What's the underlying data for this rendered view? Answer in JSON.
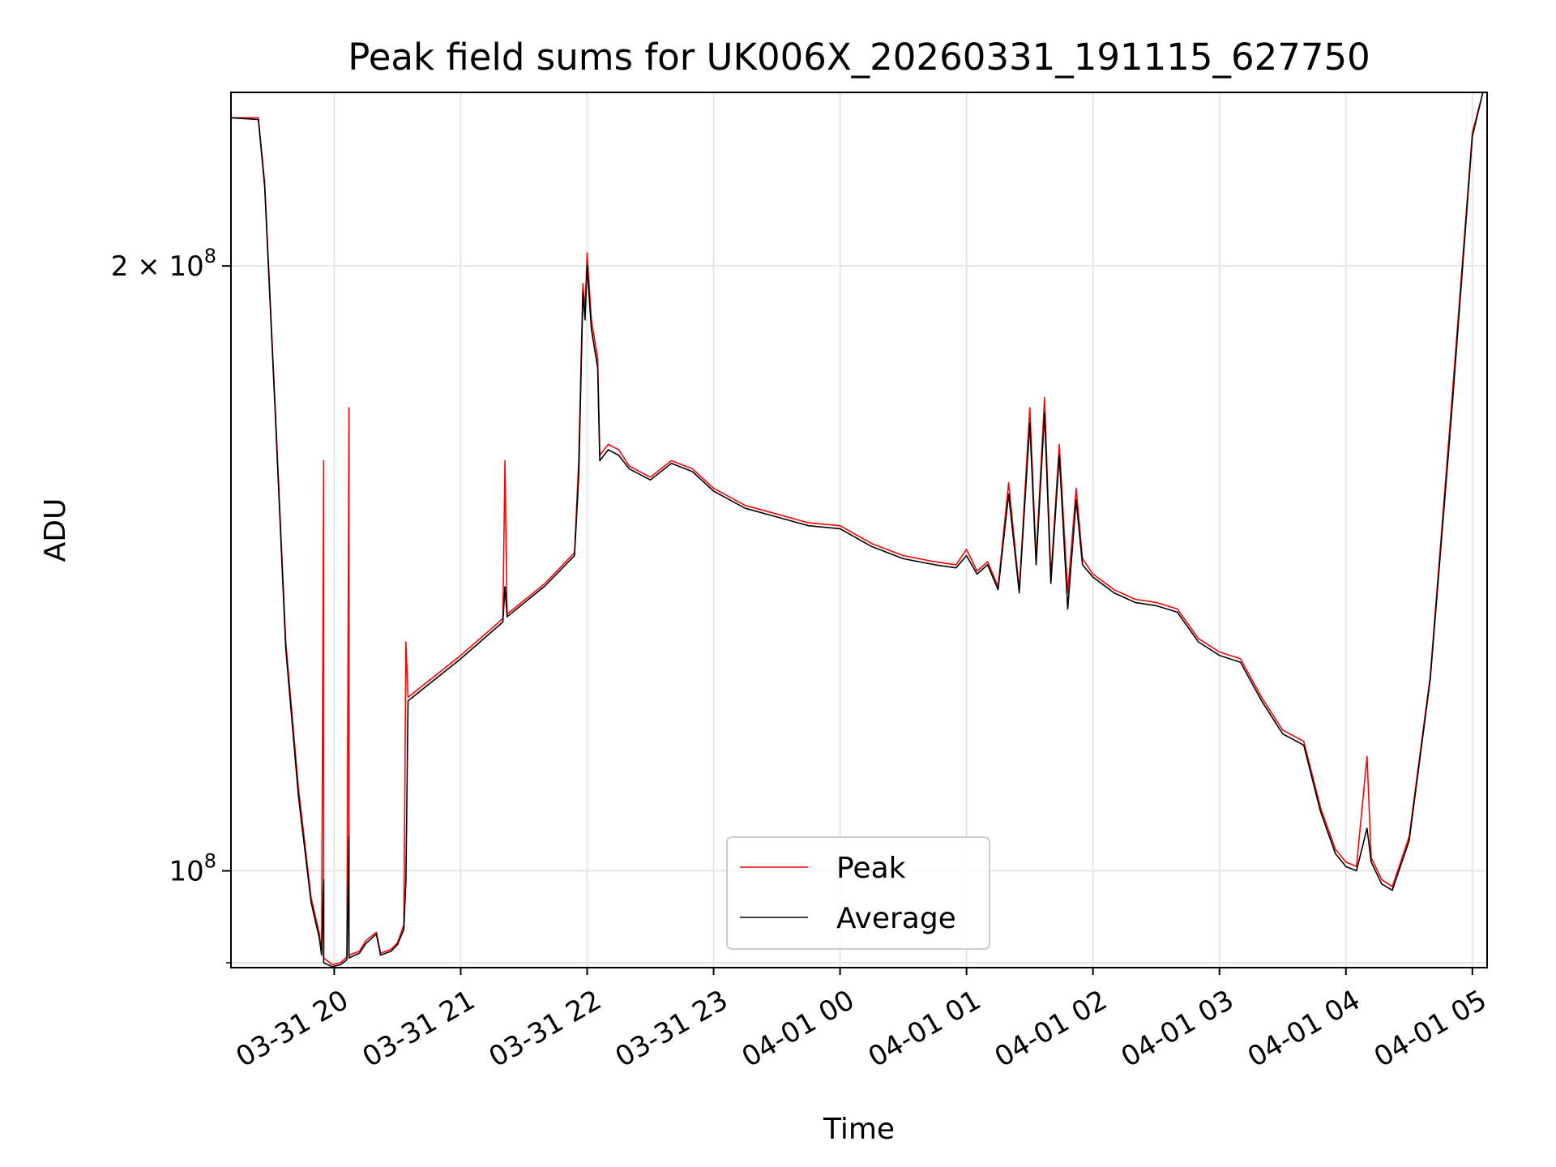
{
  "chart_data": {
    "type": "line",
    "title": "Peak field sums for UK006X_20260331_191115_627750",
    "xlabel": "Time",
    "ylabel": "ADU",
    "x_scale": "time",
    "y_scale": "log",
    "xlim": [
      "2026-03-31 19:11",
      "2026-04-01 05:07"
    ],
    "ylim": [
      89500000,
      244000000
    ],
    "x_ticks": [
      "03-31 20",
      "03-31 21",
      "03-31 22",
      "03-31 23",
      "04-01 00",
      "04-01 01",
      "04-01 02",
      "04-01 03",
      "04-01 04",
      "04-01 05"
    ],
    "y_ticks": [
      {
        "value": 100000000,
        "mantissa": "",
        "exponent": "8"
      },
      {
        "value": 200000000,
        "mantissa": "2",
        "exponent": "8"
      }
    ],
    "y_minor_ticks": [
      90000000
    ],
    "grid": true,
    "legend_position": "lower center",
    "series": [
      {
        "name": "Peak",
        "color": "#ff0000",
        "points": [
          [
            "2026-03-31 19:11",
            237000000
          ],
          [
            "2026-03-31 19:24",
            237000000
          ],
          [
            "2026-03-31 19:27",
            220000000
          ],
          [
            "2026-03-31 19:32",
            170000000
          ],
          [
            "2026-03-31 19:37",
            130000000
          ],
          [
            "2026-03-31 19:43",
            110000000
          ],
          [
            "2026-03-31 19:49",
            97000000
          ],
          [
            "2026-03-31 19:53",
            93000000
          ],
          [
            "2026-03-31 19:54",
            91000000
          ],
          [
            "2026-03-31 19:55",
            160000000
          ],
          [
            "2026-03-31 19:55",
            90500000
          ],
          [
            "2026-03-31 19:59",
            89800000
          ],
          [
            "2026-03-31 20:03",
            90000000
          ],
          [
            "2026-03-31 20:06",
            90600000
          ],
          [
            "2026-03-31 20:07",
            170000000
          ],
          [
            "2026-03-31 20:07",
            90800000
          ],
          [
            "2026-03-31 20:12",
            91200000
          ],
          [
            "2026-03-31 20:15",
            92300000
          ],
          [
            "2026-03-31 20:20",
            93200000
          ],
          [
            "2026-03-31 20:22",
            91000000
          ],
          [
            "2026-03-31 20:27",
            91400000
          ],
          [
            "2026-03-31 20:30",
            92100000
          ],
          [
            "2026-03-31 20:33",
            94000000
          ],
          [
            "2026-03-31 20:34",
            130000000
          ],
          [
            "2026-03-31 20:35",
            122000000
          ],
          [
            "2026-03-31 21:00",
            128000000
          ],
          [
            "2026-03-31 21:20",
            133500000
          ],
          [
            "2026-03-31 21:21",
            160000000
          ],
          [
            "2026-03-31 21:22",
            134200000
          ],
          [
            "2026-03-31 21:40",
            139000000
          ],
          [
            "2026-03-31 21:54",
            144000000
          ],
          [
            "2026-03-31 21:56",
            160000000
          ],
          [
            "2026-03-31 21:58",
            196000000
          ],
          [
            "2026-03-31 21:59",
            190000000
          ],
          [
            "2026-03-31 22:00",
            203000000
          ],
          [
            "2026-03-31 22:02",
            188000000
          ],
          [
            "2026-03-31 22:05",
            180000000
          ],
          [
            "2026-03-31 22:06",
            161000000
          ],
          [
            "2026-03-31 22:10",
            163000000
          ],
          [
            "2026-03-31 22:15",
            162000000
          ],
          [
            "2026-03-31 22:20",
            159000000
          ],
          [
            "2026-03-31 22:30",
            157000000
          ],
          [
            "2026-03-31 22:40",
            160000000
          ],
          [
            "2026-03-31 22:50",
            158500000
          ],
          [
            "2026-03-31 23:00",
            155000000
          ],
          [
            "2026-03-31 23:15",
            152000000
          ],
          [
            "2026-03-31 23:30",
            150500000
          ],
          [
            "2026-03-31 23:45",
            149000000
          ],
          [
            "2026-04-01 00:00",
            148500000
          ],
          [
            "2026-04-01 00:15",
            145500000
          ],
          [
            "2026-04-01 00:30",
            143500000
          ],
          [
            "2026-04-01 00:45",
            142500000
          ],
          [
            "2026-04-01 00:55",
            142000000
          ],
          [
            "2026-04-01 01:00",
            144500000
          ],
          [
            "2026-04-01 01:05",
            141000000
          ],
          [
            "2026-04-01 01:10",
            142500000
          ],
          [
            "2026-04-01 01:15",
            138500000
          ],
          [
            "2026-04-01 01:20",
            156000000
          ],
          [
            "2026-04-01 01:25",
            138000000
          ],
          [
            "2026-04-01 01:30",
            170000000
          ],
          [
            "2026-04-01 01:33",
            143000000
          ],
          [
            "2026-04-01 01:37",
            172000000
          ],
          [
            "2026-04-01 01:40",
            140000000
          ],
          [
            "2026-04-01 01:44",
            163000000
          ],
          [
            "2026-04-01 01:48",
            137500000
          ],
          [
            "2026-04-01 01:52",
            155000000
          ],
          [
            "2026-04-01 01:55",
            143000000
          ],
          [
            "2026-04-01 02:00",
            140500000
          ],
          [
            "2026-04-01 02:10",
            138000000
          ],
          [
            "2026-04-01 02:20",
            136500000
          ],
          [
            "2026-04-01 02:30",
            136000000
          ],
          [
            "2026-04-01 02:40",
            135000000
          ],
          [
            "2026-04-01 02:50",
            130500000
          ],
          [
            "2026-04-01 03:00",
            128500000
          ],
          [
            "2026-04-01 03:10",
            127500000
          ],
          [
            "2026-04-01 03:20",
            122000000
          ],
          [
            "2026-04-01 03:30",
            117500000
          ],
          [
            "2026-04-01 03:40",
            116000000
          ],
          [
            "2026-04-01 03:48",
            107500000
          ],
          [
            "2026-04-01 03:55",
            102500000
          ],
          [
            "2026-04-01 04:00",
            101000000
          ],
          [
            "2026-04-01 04:05",
            100500000
          ],
          [
            "2026-04-01 04:10",
            114000000
          ],
          [
            "2026-04-01 04:12",
            101500000
          ],
          [
            "2026-04-01 04:17",
            99000000
          ],
          [
            "2026-04-01 04:22",
            98200000
          ],
          [
            "2026-04-01 04:30",
            104000000
          ],
          [
            "2026-04-01 04:40",
            125000000
          ],
          [
            "2026-04-01 04:50",
            170000000
          ],
          [
            "2026-04-01 05:00",
            233000000
          ],
          [
            "2026-04-01 05:05",
            244000000
          ]
        ]
      },
      {
        "name": "Average",
        "color": "#000000",
        "points": [
          [
            "2026-03-31 19:11",
            237000000
          ],
          [
            "2026-03-31 19:24",
            236500000
          ],
          [
            "2026-03-31 19:27",
            219000000
          ],
          [
            "2026-03-31 19:32",
            169000000
          ],
          [
            "2026-03-31 19:37",
            129000000
          ],
          [
            "2026-03-31 19:43",
            109000000
          ],
          [
            "2026-03-31 19:49",
            96500000
          ],
          [
            "2026-03-31 19:53",
            92500000
          ],
          [
            "2026-03-31 19:54",
            90800000
          ],
          [
            "2026-03-31 19:55",
            99000000
          ],
          [
            "2026-03-31 19:55",
            90000000
          ],
          [
            "2026-03-31 19:59",
            89600000
          ],
          [
            "2026-03-31 20:03",
            89800000
          ],
          [
            "2026-03-31 20:06",
            90300000
          ],
          [
            "2026-03-31 20:07",
            104000000
          ],
          [
            "2026-03-31 20:07",
            90500000
          ],
          [
            "2026-03-31 20:12",
            91000000
          ],
          [
            "2026-03-31 20:15",
            92000000
          ],
          [
            "2026-03-31 20:20",
            93000000
          ],
          [
            "2026-03-31 20:22",
            90800000
          ],
          [
            "2026-03-31 20:27",
            91200000
          ],
          [
            "2026-03-31 20:30",
            91900000
          ],
          [
            "2026-03-31 20:33",
            93500000
          ],
          [
            "2026-03-31 20:34",
            99000000
          ],
          [
            "2026-03-31 20:35",
            121500000
          ],
          [
            "2026-03-31 21:00",
            127500000
          ],
          [
            "2026-03-31 21:20",
            133000000
          ],
          [
            "2026-03-31 21:21",
            138500000
          ],
          [
            "2026-03-31 21:22",
            133800000
          ],
          [
            "2026-03-31 21:40",
            138600000
          ],
          [
            "2026-03-31 21:54",
            143500000
          ],
          [
            "2026-03-31 21:56",
            157000000
          ],
          [
            "2026-03-31 21:58",
            194000000
          ],
          [
            "2026-03-31 21:59",
            188000000
          ],
          [
            "2026-03-31 22:00",
            200000000
          ],
          [
            "2026-03-31 22:02",
            186000000
          ],
          [
            "2026-03-31 22:05",
            178000000
          ],
          [
            "2026-03-31 22:06",
            160000000
          ],
          [
            "2026-03-31 22:10",
            162000000
          ],
          [
            "2026-03-31 22:15",
            161000000
          ],
          [
            "2026-03-31 22:20",
            158500000
          ],
          [
            "2026-03-31 22:30",
            156500000
          ],
          [
            "2026-03-31 22:40",
            159500000
          ],
          [
            "2026-03-31 22:50",
            158000000
          ],
          [
            "2026-03-31 23:00",
            154500000
          ],
          [
            "2026-03-31 23:15",
            151500000
          ],
          [
            "2026-03-31 23:30",
            150000000
          ],
          [
            "2026-03-31 23:45",
            148500000
          ],
          [
            "2026-04-01 00:00",
            148000000
          ],
          [
            "2026-04-01 00:15",
            145000000
          ],
          [
            "2026-04-01 00:30",
            143000000
          ],
          [
            "2026-04-01 00:45",
            142000000
          ],
          [
            "2026-04-01 00:55",
            141500000
          ],
          [
            "2026-04-01 01:00",
            143500000
          ],
          [
            "2026-04-01 01:05",
            140500000
          ],
          [
            "2026-04-01 01:10",
            142000000
          ],
          [
            "2026-04-01 01:15",
            138000000
          ],
          [
            "2026-04-01 01:20",
            154000000
          ],
          [
            "2026-04-01 01:25",
            137500000
          ],
          [
            "2026-04-01 01:30",
            167000000
          ],
          [
            "2026-04-01 01:33",
            142000000
          ],
          [
            "2026-04-01 01:37",
            169000000
          ],
          [
            "2026-04-01 01:40",
            139000000
          ],
          [
            "2026-04-01 01:44",
            161000000
          ],
          [
            "2026-04-01 01:48",
            135000000
          ],
          [
            "2026-04-01 01:52",
            153000000
          ],
          [
            "2026-04-01 01:55",
            142000000
          ],
          [
            "2026-04-01 02:00",
            140000000
          ],
          [
            "2026-04-01 02:10",
            137500000
          ],
          [
            "2026-04-01 02:20",
            136000000
          ],
          [
            "2026-04-01 02:30",
            135500000
          ],
          [
            "2026-04-01 02:40",
            134500000
          ],
          [
            "2026-04-01 02:50",
            130000000
          ],
          [
            "2026-04-01 03:00",
            128000000
          ],
          [
            "2026-04-01 03:10",
            127000000
          ],
          [
            "2026-04-01 03:20",
            121500000
          ],
          [
            "2026-04-01 03:30",
            117000000
          ],
          [
            "2026-04-01 03:40",
            115500000
          ],
          [
            "2026-04-01 03:48",
            107000000
          ],
          [
            "2026-04-01 03:55",
            102000000
          ],
          [
            "2026-04-01 04:00",
            100500000
          ],
          [
            "2026-04-01 04:05",
            100000000
          ],
          [
            "2026-04-01 04:10",
            105000000
          ],
          [
            "2026-04-01 04:12",
            101000000
          ],
          [
            "2026-04-01 04:17",
            98500000
          ],
          [
            "2026-04-01 04:22",
            97800000
          ],
          [
            "2026-04-01 04:30",
            103500000
          ],
          [
            "2026-04-01 04:40",
            124500000
          ],
          [
            "2026-04-01 04:50",
            168000000
          ],
          [
            "2026-04-01 05:00",
            232000000
          ],
          [
            "2026-04-01 05:05",
            244000000
          ]
        ]
      }
    ]
  }
}
